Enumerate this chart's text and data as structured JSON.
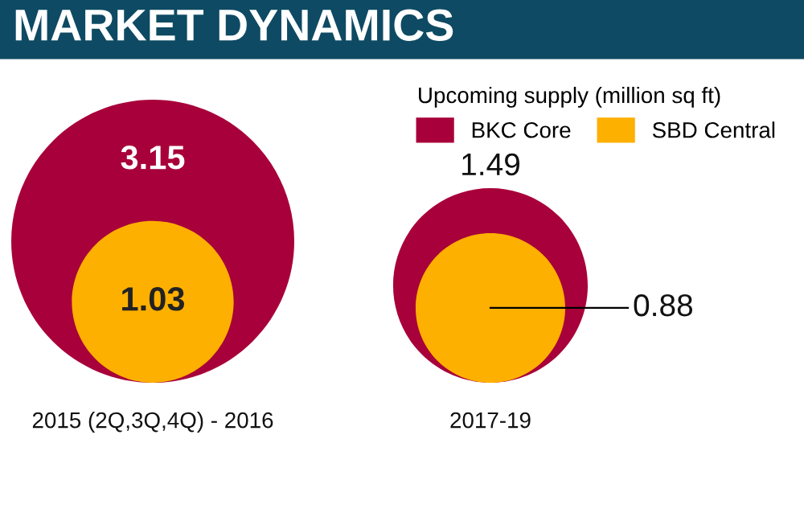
{
  "chart_data": {
    "type": "other",
    "title": "MARKET DYNAMICS",
    "legend_title": "Upcoming supply (million sq ft)",
    "categories": [
      "2015 (2Q,3Q,4Q) - 2016",
      "2017-19"
    ],
    "series": [
      {
        "name": "BKC Core",
        "color": "#a8003a",
        "values": [
          3.15,
          1.49
        ]
      },
      {
        "name": "SBD Central",
        "color": "#fdb000",
        "values": [
          1.03,
          0.88
        ]
      }
    ],
    "legend": "top right",
    "data_labels": true
  }
}
